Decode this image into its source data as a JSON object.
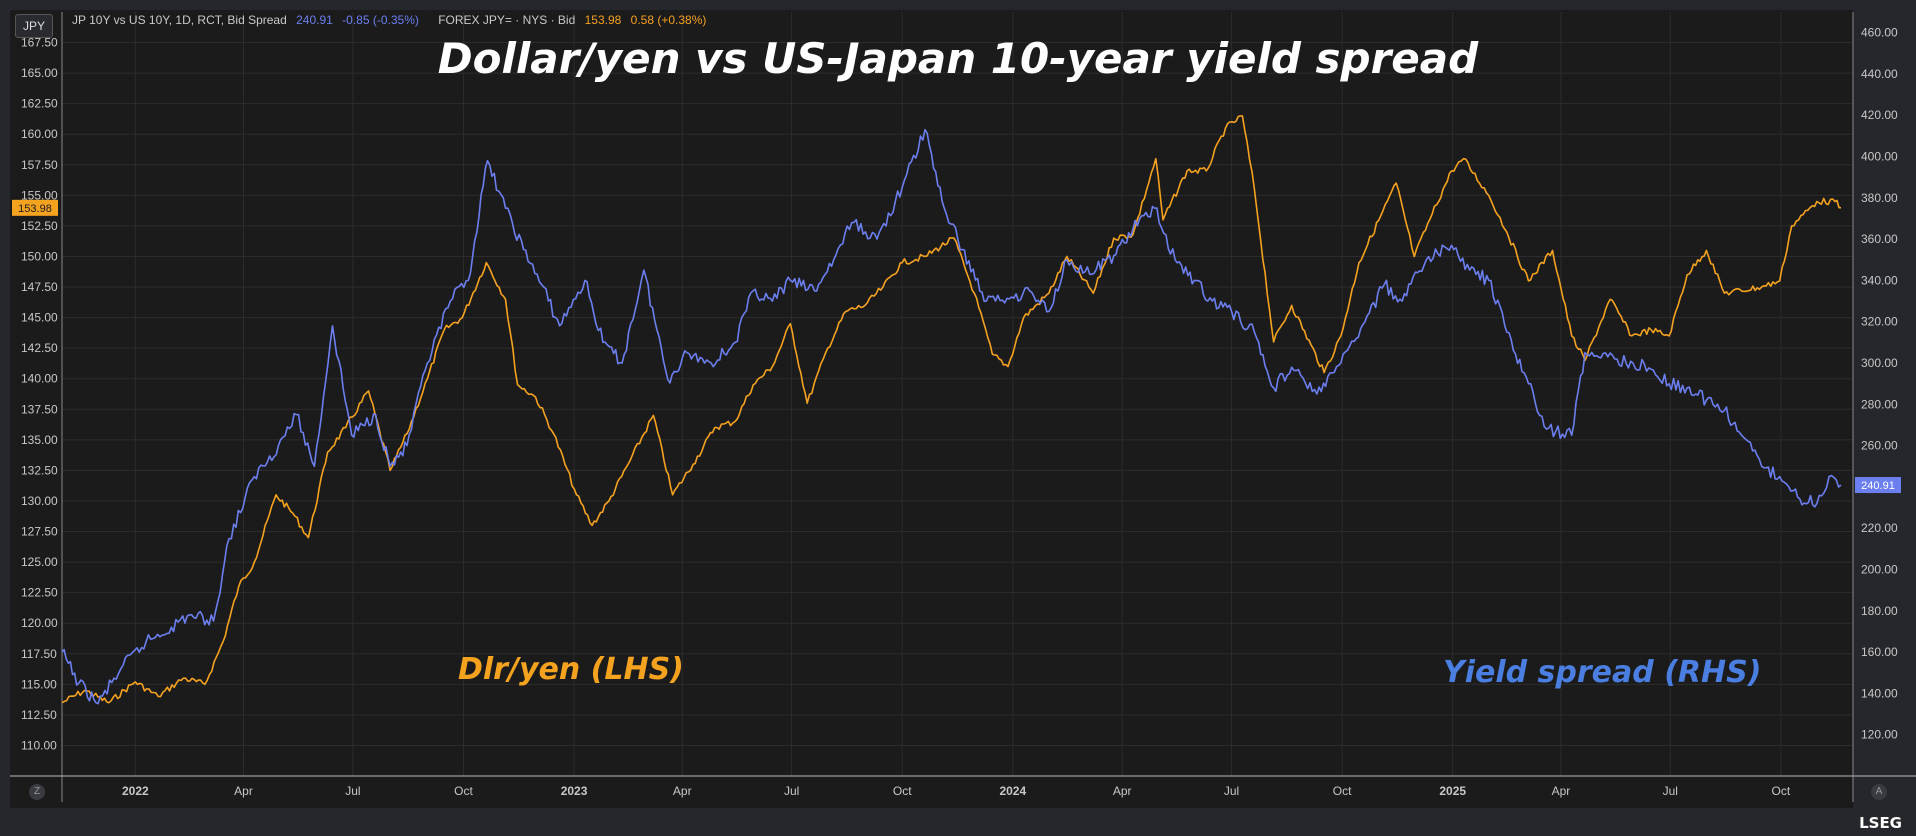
{
  "currency_button": "JPY",
  "legend": {
    "series1_name": "JP 10Y vs US 10Y, 1D, RCT, Bid Spread",
    "series1_value": "240.91",
    "series1_change": "-0.85 (-0.35%)",
    "series2_name": "FOREX JPY= · NYS · Bid",
    "series2_value": "153.98",
    "series2_change": "0.58 (+0.38%)"
  },
  "title": "Dollar/yen vs US-Japan 10-year yield spread",
  "annotations": {
    "left": "Dlr/yen (LHS)",
    "right": "Yield spread (RHS)"
  },
  "logo": "LSEG",
  "corner_buttons": {
    "zoom": "Z",
    "auto": "A"
  },
  "colors": {
    "yen": "#f5a21f",
    "spread": "#6c7ff0",
    "background": "#1b1b1b",
    "grid": "#2c2c2c",
    "axis_text": "#c8c8c8"
  },
  "chart_data": {
    "type": "line",
    "title": "Dollar/yen vs US-Japan 10-year yield spread",
    "grid": true,
    "x_ticks": [
      "2022",
      "Apr",
      "Jul",
      "Oct",
      "2023",
      "Apr",
      "Jul",
      "Oct",
      "2024",
      "Apr",
      "Jul",
      "Oct",
      "2025",
      "Apr",
      "Jul",
      "Oct"
    ],
    "x_range": [
      "2021-11-01",
      "2025-11-30"
    ],
    "left_axis": {
      "ylim": [
        107.5,
        170.0
      ],
      "ticks": [
        "110.00",
        "112.50",
        "115.00",
        "117.50",
        "120.00",
        "122.50",
        "125.00",
        "127.50",
        "130.00",
        "132.50",
        "135.00",
        "137.50",
        "140.00",
        "142.50",
        "145.00",
        "147.50",
        "150.00",
        "152.50",
        "155.00",
        "157.50",
        "160.00",
        "162.50",
        "165.00",
        "167.50"
      ],
      "last_value_label": "153.98"
    },
    "right_axis": {
      "ylim": [
        100,
        470
      ],
      "ticks": [
        "120.00",
        "140.00",
        "160.00",
        "180.00",
        "200.00",
        "220.00",
        "240.00",
        "260.00",
        "280.00",
        "300.00",
        "320.00",
        "340.00",
        "360.00",
        "380.00",
        "400.00",
        "420.00",
        "440.00",
        "460.00"
      ],
      "last_value_label": "240.91"
    },
    "series": [
      {
        "name": "FOREX JPY= · NYS · Bid",
        "axis": "left",
        "color": "#f5a21f",
        "points": [
          [
            "2021-11-01",
            113.5
          ],
          [
            "2021-11-20",
            114.5
          ],
          [
            "2021-12-10",
            113.5
          ],
          [
            "2022-01-01",
            115.2
          ],
          [
            "2022-01-20",
            114.0
          ],
          [
            "2022-02-10",
            115.5
          ],
          [
            "2022-02-28",
            115.0
          ],
          [
            "2022-03-15",
            118.5
          ],
          [
            "2022-03-28",
            123.0
          ],
          [
            "2022-04-10",
            125.0
          ],
          [
            "2022-04-28",
            130.5
          ],
          [
            "2022-05-12",
            129.0
          ],
          [
            "2022-05-25",
            127.0
          ],
          [
            "2022-06-10",
            134.0
          ],
          [
            "2022-06-25",
            136.0
          ],
          [
            "2022-07-14",
            139.0
          ],
          [
            "2022-08-01",
            132.5
          ],
          [
            "2022-08-15",
            135.5
          ],
          [
            "2022-09-01",
            140.0
          ],
          [
            "2022-09-15",
            144.0
          ],
          [
            "2022-09-30",
            145.0
          ],
          [
            "2022-10-20",
            149.5
          ],
          [
            "2022-11-05",
            146.5
          ],
          [
            "2022-11-15",
            139.5
          ],
          [
            "2022-11-30",
            138.5
          ],
          [
            "2022-12-15",
            135.5
          ],
          [
            "2023-01-03",
            130.5
          ],
          [
            "2023-01-16",
            128.0
          ],
          [
            "2023-01-30",
            130.0
          ],
          [
            "2023-02-15",
            133.0
          ],
          [
            "2023-03-08",
            137.0
          ],
          [
            "2023-03-24",
            130.5
          ],
          [
            "2023-04-10",
            133.0
          ],
          [
            "2023-04-28",
            136.0
          ],
          [
            "2023-05-15",
            136.5
          ],
          [
            "2023-05-30",
            139.5
          ],
          [
            "2023-06-15",
            141.0
          ],
          [
            "2023-06-30",
            144.5
          ],
          [
            "2023-07-14",
            138.0
          ],
          [
            "2023-07-31",
            142.5
          ],
          [
            "2023-08-15",
            145.5
          ],
          [
            "2023-08-31",
            146.0
          ],
          [
            "2023-09-15",
            147.5
          ],
          [
            "2023-10-01",
            149.5
          ],
          [
            "2023-10-20",
            150.0
          ],
          [
            "2023-11-13",
            151.5
          ],
          [
            "2023-11-30",
            147.0
          ],
          [
            "2023-12-15",
            142.0
          ],
          [
            "2023-12-28",
            141.0
          ],
          [
            "2024-01-10",
            145.0
          ],
          [
            "2024-01-31",
            147.0
          ],
          [
            "2024-02-15",
            150.0
          ],
          [
            "2024-03-08",
            147.0
          ],
          [
            "2024-03-25",
            151.5
          ],
          [
            "2024-04-10",
            151.8
          ],
          [
            "2024-04-29",
            158.0
          ],
          [
            "2024-05-05",
            153.0
          ],
          [
            "2024-05-25",
            157.0
          ],
          [
            "2024-06-10",
            157.0
          ],
          [
            "2024-06-26",
            160.5
          ],
          [
            "2024-07-10",
            161.5
          ],
          [
            "2024-07-20",
            155.5
          ],
          [
            "2024-08-05",
            143.0
          ],
          [
            "2024-08-20",
            146.0
          ],
          [
            "2024-09-16",
            140.5
          ],
          [
            "2024-09-30",
            143.5
          ],
          [
            "2024-10-15",
            149.5
          ],
          [
            "2024-11-15",
            156.0
          ],
          [
            "2024-11-30",
            150.0
          ],
          [
            "2024-12-15",
            153.5
          ],
          [
            "2024-12-31",
            157.0
          ],
          [
            "2025-01-10",
            158.0
          ],
          [
            "2025-01-31",
            155.0
          ],
          [
            "2025-02-15",
            152.0
          ],
          [
            "2025-03-05",
            148.0
          ],
          [
            "2025-03-25",
            150.5
          ],
          [
            "2025-04-10",
            143.5
          ],
          [
            "2025-04-21",
            141.5
          ],
          [
            "2025-05-12",
            146.5
          ],
          [
            "2025-05-30",
            143.5
          ],
          [
            "2025-06-15",
            144.0
          ],
          [
            "2025-06-30",
            143.5
          ],
          [
            "2025-07-15",
            148.5
          ],
          [
            "2025-07-31",
            150.5
          ],
          [
            "2025-08-15",
            147.0
          ],
          [
            "2025-09-15",
            147.5
          ],
          [
            "2025-09-30",
            148.0
          ],
          [
            "2025-10-10",
            152.5
          ],
          [
            "2025-10-31",
            154.5
          ],
          [
            "2025-11-15",
            154.5
          ],
          [
            "2025-11-20",
            153.98
          ]
        ]
      },
      {
        "name": "JP 10Y vs US 10Y, 1D, RCT, Bid Spread",
        "axis": "right",
        "color": "#6c7ff0",
        "points": [
          [
            "2021-11-01",
            160
          ],
          [
            "2021-11-15",
            145
          ],
          [
            "2021-12-01",
            135
          ],
          [
            "2021-12-20",
            152
          ],
          [
            "2022-01-10",
            165
          ],
          [
            "2022-01-31",
            172
          ],
          [
            "2022-02-15",
            178
          ],
          [
            "2022-03-07",
            175
          ],
          [
            "2022-03-20",
            215
          ],
          [
            "2022-04-10",
            245
          ],
          [
            "2022-04-30",
            260
          ],
          [
            "2022-05-15",
            275
          ],
          [
            "2022-05-30",
            250
          ],
          [
            "2022-06-14",
            318
          ],
          [
            "2022-06-30",
            265
          ],
          [
            "2022-07-20",
            275
          ],
          [
            "2022-08-01",
            250
          ],
          [
            "2022-08-15",
            260
          ],
          [
            "2022-09-01",
            300
          ],
          [
            "2022-09-20",
            330
          ],
          [
            "2022-10-05",
            340
          ],
          [
            "2022-10-21",
            398
          ],
          [
            "2022-11-05",
            375
          ],
          [
            "2022-11-20",
            355
          ],
          [
            "2022-12-05",
            338
          ],
          [
            "2022-12-20",
            318
          ],
          [
            "2023-01-10",
            340
          ],
          [
            "2023-01-25",
            310
          ],
          [
            "2023-02-10",
            300
          ],
          [
            "2023-02-28",
            345
          ],
          [
            "2023-03-20",
            292
          ],
          [
            "2023-04-05",
            305
          ],
          [
            "2023-04-25",
            300
          ],
          [
            "2023-05-15",
            310
          ],
          [
            "2023-05-30",
            335
          ],
          [
            "2023-06-15",
            330
          ],
          [
            "2023-06-30",
            340
          ],
          [
            "2023-07-20",
            335
          ],
          [
            "2023-08-05",
            350
          ],
          [
            "2023-08-20",
            368
          ],
          [
            "2023-09-10",
            360
          ],
          [
            "2023-10-01",
            385
          ],
          [
            "2023-10-20",
            413
          ],
          [
            "2023-11-05",
            375
          ],
          [
            "2023-11-20",
            355
          ],
          [
            "2023-12-10",
            330
          ],
          [
            "2023-12-31",
            332
          ],
          [
            "2024-01-15",
            335
          ],
          [
            "2024-01-31",
            325
          ],
          [
            "2024-02-15",
            350
          ],
          [
            "2024-03-05",
            343
          ],
          [
            "2024-03-25",
            352
          ],
          [
            "2024-04-10",
            365
          ],
          [
            "2024-04-28",
            375
          ],
          [
            "2024-05-15",
            350
          ],
          [
            "2024-05-31",
            340
          ],
          [
            "2024-06-15",
            330
          ],
          [
            "2024-07-01",
            325
          ],
          [
            "2024-07-20",
            315
          ],
          [
            "2024-08-05",
            288
          ],
          [
            "2024-08-20",
            298
          ],
          [
            "2024-09-10",
            285
          ],
          [
            "2024-09-30",
            300
          ],
          [
            "2024-10-20",
            320
          ],
          [
            "2024-11-05",
            338
          ],
          [
            "2024-11-20",
            330
          ],
          [
            "2024-12-10",
            350
          ],
          [
            "2024-12-31",
            357
          ],
          [
            "2025-01-15",
            345
          ],
          [
            "2025-01-31",
            340
          ],
          [
            "2025-02-15",
            315
          ],
          [
            "2025-03-05",
            290
          ],
          [
            "2025-03-20",
            268
          ],
          [
            "2025-04-10",
            265
          ],
          [
            "2025-04-21",
            305
          ],
          [
            "2025-05-10",
            303
          ],
          [
            "2025-05-31",
            300
          ],
          [
            "2025-06-15",
            297
          ],
          [
            "2025-06-30",
            290
          ],
          [
            "2025-07-15",
            288
          ],
          [
            "2025-07-31",
            282
          ],
          [
            "2025-08-15",
            277
          ],
          [
            "2025-08-31",
            264
          ],
          [
            "2025-09-15",
            250
          ],
          [
            "2025-09-30",
            245
          ],
          [
            "2025-10-15",
            235
          ],
          [
            "2025-10-31",
            232
          ],
          [
            "2025-11-10",
            245
          ],
          [
            "2025-11-20",
            240.91
          ]
        ]
      }
    ]
  }
}
